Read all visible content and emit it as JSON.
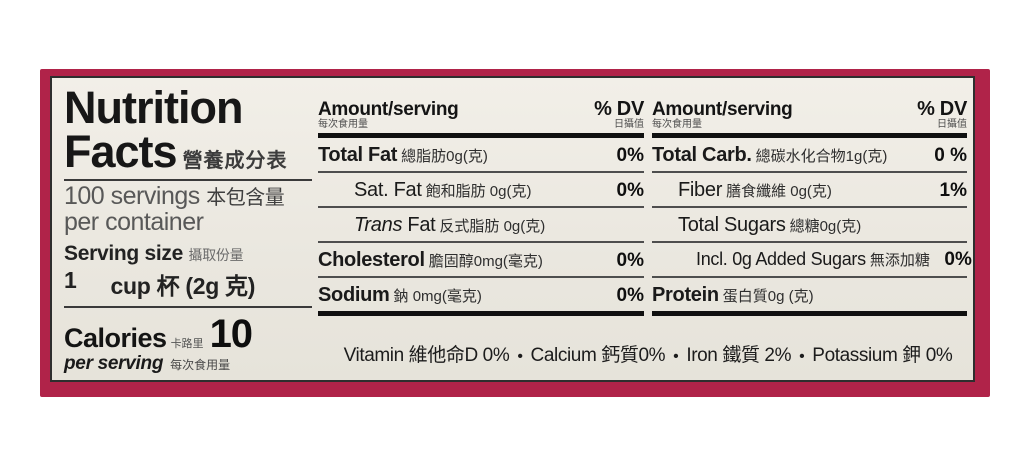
{
  "colors": {
    "packaging_red": "#b02349",
    "panel_background": "#ece9e2",
    "ink": "#111111"
  },
  "left": {
    "title_line1": "Nutrition",
    "title_line2": "Facts",
    "title_cn": "營養成分表",
    "servings_line1": "100 servings",
    "servings_cn": "本包含量",
    "servings_line2": "per container",
    "serving_size_label": "Serving size",
    "serving_size_cn": "攝取份量",
    "serving_size_num": "1",
    "serving_size_rest": "cup 杯 (2g 克)",
    "calories_label": "Calories",
    "calories_cn": "卡路里",
    "calories_value": "10",
    "per_serving_label": "per serving",
    "per_serving_cn": "每次食用量"
  },
  "middle": {
    "header": {
      "amount": "Amount/serving",
      "amount_cn": "每次食用量",
      "dv": "% DV",
      "dv_cn": "日攝值"
    },
    "rows": [
      {
        "name": "Total Fat",
        "amount": "總脂肪0g(克)",
        "dv": "0%"
      },
      {
        "name": "Sat. Fat",
        "amount": "飽和脂肪 0g(克)",
        "dv": "0%"
      },
      {
        "name_italic": "Trans",
        "name": " Fat",
        "amount": "反式脂肪 0g(克)",
        "dv": ""
      },
      {
        "name": "Cholesterol",
        "amount": "膽固醇0mg(毫克)",
        "dv": "0%"
      },
      {
        "name": "Sodium",
        "amount": "鈉 0mg(毫克)",
        "dv": "0%"
      }
    ]
  },
  "right": {
    "header": {
      "amount": "Amount/serving",
      "amount_cn": "每次食用量",
      "dv": "% DV",
      "dv_cn": "日攝值"
    },
    "rows": [
      {
        "name": "Total Carb.",
        "amount": "總碳水化合物1g(克)",
        "dv": "0 %"
      },
      {
        "name": "Fiber",
        "amount": "膳食纖維 0g(克)",
        "dv": "1%"
      },
      {
        "name": "Total Sugars",
        "amount": "總糖0g(克)",
        "dv": ""
      },
      {
        "name": "Incl. 0g Added Sugars",
        "amount": "無添加糖",
        "dv": "0%"
      },
      {
        "name": "Protein",
        "amount": "蛋白質0g (克)",
        "dv": ""
      }
    ]
  },
  "footer": {
    "separator": "•",
    "items": [
      "Vitamin 維他命D 0%",
      "Calcium 鈣質0%",
      "Iron 鐵質 2%",
      "Potassium 鉀 0%"
    ]
  }
}
